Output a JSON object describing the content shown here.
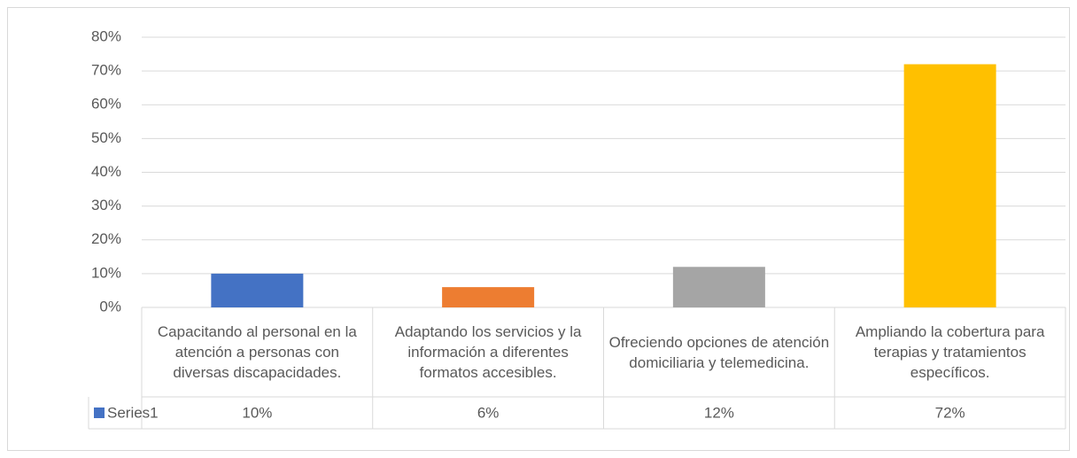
{
  "chart_data": {
    "type": "bar",
    "categories": [
      "Capacitando al personal en la atención a personas con diversas discapacidades.",
      "Adaptando los servicios y la información a diferentes formatos accesibles.",
      "Ofreciendo opciones de atención domiciliaria y telemedicina.",
      "Ampliando la cobertura para terapias y tratamientos específicos."
    ],
    "series": [
      {
        "name": "Series1",
        "color": "#4472c4",
        "colors": [
          "#4472c4",
          "#ed7d31",
          "#a5a5a5",
          "#ffc000"
        ],
        "values": [
          10,
          6,
          12,
          72
        ],
        "value_labels": [
          "10%",
          "6%",
          "12%",
          "72%"
        ]
      }
    ],
    "ylim": [
      0,
      80
    ],
    "yticks": [
      {
        "value": 0,
        "label": "0%"
      },
      {
        "value": 10,
        "label": "10%"
      },
      {
        "value": 20,
        "label": "20%"
      },
      {
        "value": 30,
        "label": "30%"
      },
      {
        "value": 40,
        "label": "40%"
      },
      {
        "value": 50,
        "label": "50%"
      },
      {
        "value": 60,
        "label": "60%"
      },
      {
        "value": 70,
        "label": "70%"
      },
      {
        "value": 80,
        "label": "80%"
      }
    ],
    "grid": true
  }
}
